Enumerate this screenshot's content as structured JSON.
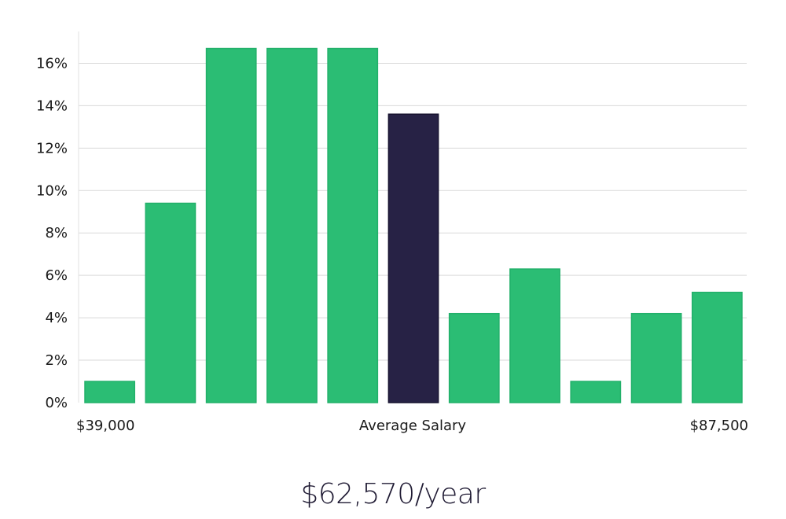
{
  "chart_data": {
    "type": "bar",
    "values": [
      1.0,
      9.4,
      16.7,
      16.7,
      16.7,
      13.6,
      4.2,
      6.3,
      1.0,
      4.2,
      5.2
    ],
    "highlight_index": 5,
    "ylim": [
      0,
      17.5
    ],
    "y_ticks": [
      0,
      2,
      4,
      6,
      8,
      10,
      12,
      14,
      16
    ],
    "y_tick_suffix": "%",
    "x_labels": {
      "left": "$39,000",
      "center": "Average Salary",
      "right": "$87,500"
    },
    "grid": true,
    "colors": {
      "bar": "#2bbd74",
      "bar_stroke": "#22b06a",
      "highlight": "#272245",
      "highlight_stroke": "#171330",
      "grid": "#d9d9d9",
      "axis": "#e2e2e2"
    }
  },
  "footer": {
    "salary": "$62,570/year"
  }
}
